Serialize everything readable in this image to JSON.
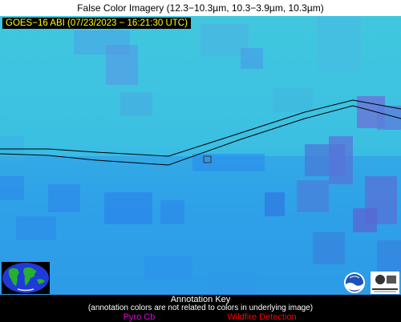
{
  "title": "False Color Imagery (12.3−10.3µm, 10.3−3.9µm, 10.3µm)",
  "timestamp": "GOES−16 ABI (07/23/2023 − 16:21:30 UTC)",
  "colors": {
    "base": "#3fc5e0",
    "deep_blue": "#2a90e8",
    "purple": "#5a70e0",
    "boundary_line": "#000000",
    "pyro_cb": "#e000e0",
    "wildfire": "#ff0000"
  },
  "icons": [
    "globe-icon",
    "noaa-logo-icon",
    "nasa-logo-icon"
  ],
  "annotation_key": {
    "title": "Annotation Key",
    "note": "(annotation colors are not related to colors in underlying image)",
    "pyro_cb": "Pyro Cb",
    "wildfire": "Wildfire Detection"
  }
}
